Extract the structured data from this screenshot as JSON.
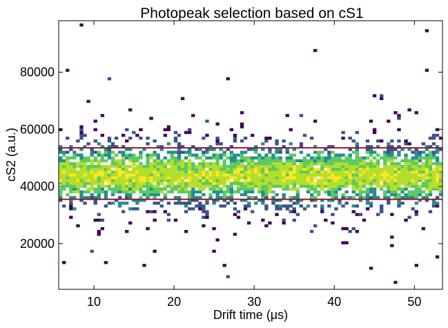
{
  "chart_data": {
    "type": "heatmap",
    "title": "Photopeak selection based on cS1",
    "xlabel": "Drift time (μs)",
    "ylabel": "cS2 (a.u.)",
    "xlim": [
      5.6,
      53.5
    ],
    "ylim": [
      4000,
      98000
    ],
    "x_ticks": [
      10,
      20,
      30,
      40,
      50
    ],
    "y_ticks": [
      20000,
      40000,
      60000,
      80000
    ],
    "x_tick_labels": [
      "10",
      "20",
      "30",
      "40",
      "50"
    ],
    "y_tick_labels": [
      "20000",
      "40000",
      "60000",
      "80000"
    ],
    "colormap": "viridis",
    "grid": false,
    "band_center_y": 44000,
    "band_width_y": 6500,
    "selection_lines": [
      {
        "y": 53500,
        "color": "#a0102a"
      },
      {
        "y": 35500,
        "color": "#a0102a"
      }
    ],
    "bins": {
      "nx": 110,
      "ny": 95
    }
  }
}
